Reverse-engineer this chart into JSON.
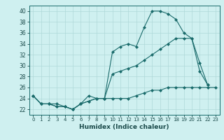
{
  "xlabel": "Humidex (Indice chaleur)",
  "ylabel": "",
  "background_color": "#cff0f0",
  "grid_color": "#aed8d8",
  "line_color": "#1a6b6b",
  "xlim": [
    -0.5,
    23.5
  ],
  "ylim": [
    21.0,
    41.0
  ],
  "yticks": [
    22,
    24,
    26,
    28,
    30,
    32,
    34,
    36,
    38,
    40
  ],
  "xticks": [
    0,
    1,
    2,
    3,
    4,
    5,
    6,
    7,
    8,
    9,
    10,
    11,
    12,
    13,
    14,
    15,
    16,
    17,
    18,
    19,
    20,
    21,
    22,
    23
  ],
  "line1_x": [
    0,
    1,
    2,
    3,
    4,
    5,
    6,
    7,
    8,
    9,
    10,
    11,
    12,
    13,
    14,
    15,
    16,
    17,
    18,
    19,
    20,
    21,
    22
  ],
  "line1_y": [
    24.5,
    23.0,
    23.0,
    23.0,
    22.5,
    22.0,
    23.0,
    24.5,
    24.0,
    24.0,
    32.5,
    33.5,
    34.0,
    33.5,
    37.0,
    40.0,
    40.0,
    39.5,
    38.5,
    36.0,
    35.0,
    29.0,
    26.5
  ],
  "line2_x": [
    0,
    1,
    2,
    3,
    4,
    5,
    6,
    7,
    8,
    9,
    10,
    11,
    12,
    13,
    14,
    15,
    16,
    17,
    18,
    19,
    20,
    21,
    22
  ],
  "line2_y": [
    24.5,
    23.0,
    23.0,
    22.5,
    22.5,
    22.0,
    23.0,
    23.5,
    24.0,
    24.0,
    28.5,
    29.0,
    29.5,
    30.0,
    31.0,
    32.0,
    33.0,
    34.0,
    35.0,
    35.0,
    35.0,
    30.5,
    26.5
  ],
  "line3_x": [
    0,
    1,
    2,
    3,
    4,
    5,
    6,
    7,
    8,
    9,
    10,
    11,
    12,
    13,
    14,
    15,
    16,
    17,
    18,
    19,
    20,
    21,
    22,
    23
  ],
  "line3_y": [
    24.5,
    23.0,
    23.0,
    22.5,
    22.5,
    22.0,
    23.0,
    23.5,
    24.0,
    24.0,
    24.0,
    24.0,
    24.0,
    24.5,
    25.0,
    25.5,
    25.5,
    26.0,
    26.0,
    26.0,
    26.0,
    26.0,
    26.0,
    26.0
  ]
}
